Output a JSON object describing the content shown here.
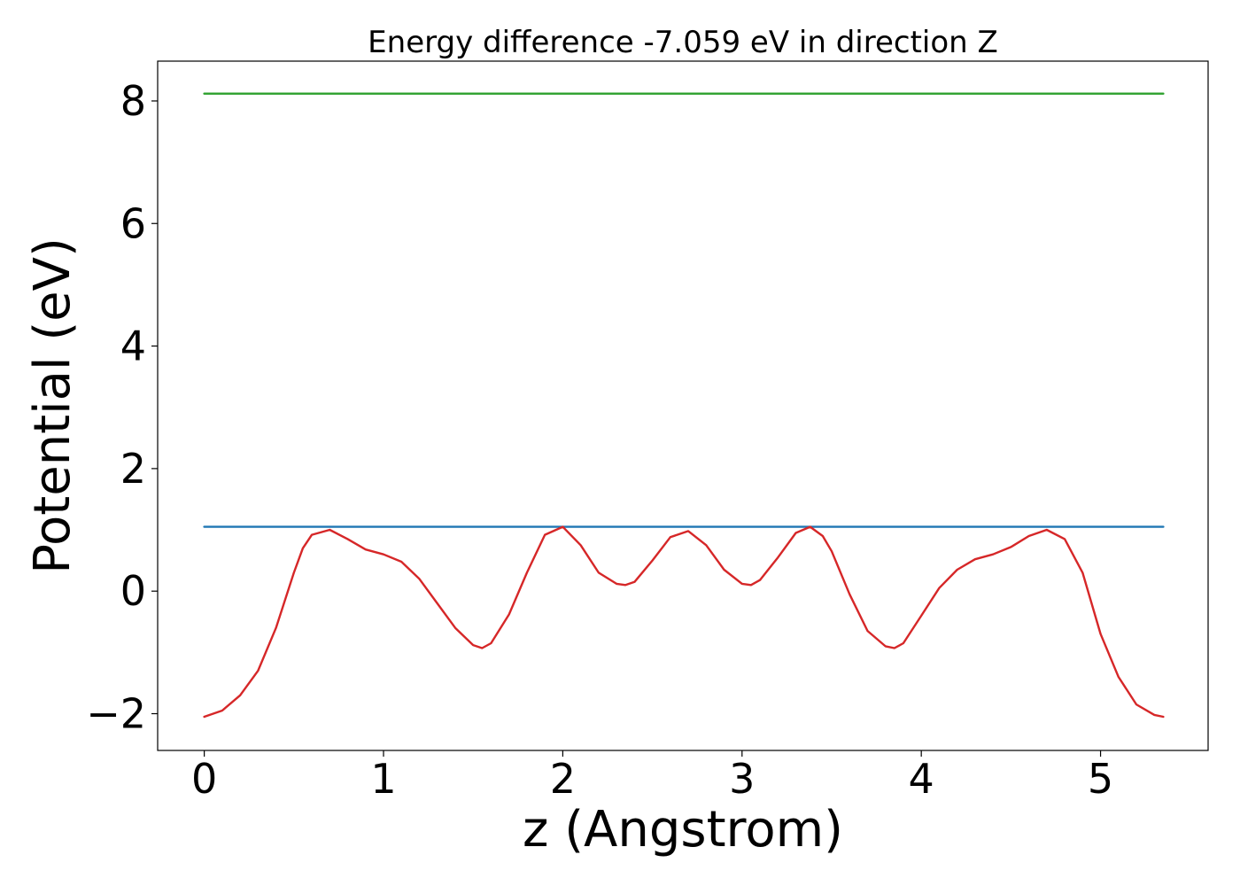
{
  "chart_data": {
    "type": "line",
    "title": "Energy difference -7.059 eV in direction Z",
    "xlabel": "z (Angstrom)",
    "ylabel": "Potential (eV)",
    "xlim": [
      -0.26,
      5.6
    ],
    "ylim": [
      -2.6,
      8.65
    ],
    "xticks": [
      0,
      1,
      2,
      3,
      4,
      5
    ],
    "yticks": [
      -2,
      0,
      2,
      4,
      6,
      8
    ],
    "ytick_labels": [
      "−2",
      "0",
      "2",
      "4",
      "6",
      "8"
    ],
    "grid": false,
    "legend": false,
    "series": [
      {
        "color": "#2ca02c",
        "x": [
          0,
          5.35
        ],
        "y": [
          8.12,
          8.12
        ]
      },
      {
        "color": "#1f77b4",
        "x": [
          0,
          5.35
        ],
        "y": [
          1.05,
          1.05
        ]
      },
      {
        "color": "#d62728",
        "x": [
          0,
          0.1,
          0.2,
          0.3,
          0.4,
          0.5,
          0.55,
          0.6,
          0.7,
          0.8,
          0.9,
          1.0,
          1.1,
          1.2,
          1.3,
          1.4,
          1.5,
          1.55,
          1.6,
          1.7,
          1.8,
          1.9,
          2.0,
          2.1,
          2.2,
          2.3,
          2.35,
          2.4,
          2.5,
          2.6,
          2.7,
          2.8,
          2.9,
          3.0,
          3.05,
          3.1,
          3.2,
          3.3,
          3.38,
          3.45,
          3.5,
          3.6,
          3.7,
          3.8,
          3.85,
          3.9,
          4.0,
          4.1,
          4.2,
          4.3,
          4.4,
          4.5,
          4.6,
          4.7,
          4.8,
          4.9,
          5.0,
          5.1,
          5.2,
          5.3,
          5.35
        ],
        "y": [
          -2.05,
          -1.95,
          -1.7,
          -1.3,
          -0.6,
          0.3,
          0.7,
          0.92,
          1.0,
          0.85,
          0.68,
          0.6,
          0.48,
          0.2,
          -0.2,
          -0.6,
          -0.88,
          -0.93,
          -0.85,
          -0.38,
          0.3,
          0.92,
          1.05,
          0.75,
          0.3,
          0.12,
          0.1,
          0.15,
          0.5,
          0.88,
          0.98,
          0.75,
          0.35,
          0.12,
          0.1,
          0.18,
          0.55,
          0.95,
          1.05,
          0.9,
          0.65,
          -0.05,
          -0.65,
          -0.9,
          -0.93,
          -0.85,
          -0.4,
          0.05,
          0.35,
          0.52,
          0.6,
          0.72,
          0.9,
          1.0,
          0.85,
          0.3,
          -0.7,
          -1.4,
          -1.85,
          -2.02,
          -2.05
        ]
      }
    ]
  }
}
